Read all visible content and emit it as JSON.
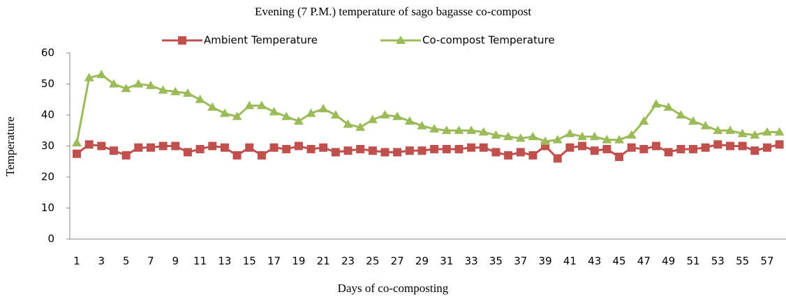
{
  "chart_data": {
    "type": "line",
    "title": "Evening (7 P.M.) temperature of sago bagasse co-compost",
    "x_label": "Days of co-composting",
    "y_label": "Temperature",
    "categories": [
      "1",
      null,
      "3",
      null,
      "5",
      null,
      "7",
      null,
      "9",
      null,
      "11",
      null,
      "13",
      null,
      "15",
      null,
      "17",
      null,
      "19",
      null,
      "21",
      null,
      "23",
      null,
      "25",
      null,
      "27",
      null,
      "29",
      null,
      "31",
      null,
      "33",
      null,
      "35",
      null,
      "37",
      null,
      "39",
      null,
      "41",
      null,
      "43",
      null,
      "45",
      null,
      "47",
      null,
      "49",
      null,
      "51",
      null,
      "53",
      null,
      "55",
      null,
      "57",
      null
    ],
    "series": [
      {
        "name": "Ambient Temperature",
        "color": "#c0504d",
        "marker": "square",
        "values": [
          27.5,
          30.5,
          30,
          28.5,
          27,
          29.5,
          29.5,
          30,
          30,
          28,
          29,
          30,
          29.5,
          27,
          29.5,
          27,
          29.5,
          29,
          30,
          29,
          29.5,
          28,
          28.5,
          29,
          28.5,
          28,
          28,
          28.5,
          28.5,
          29,
          29,
          29,
          29.5,
          29.5,
          28,
          27,
          28,
          27,
          30,
          26,
          29.5,
          30,
          28.5,
          29,
          26.5,
          29.5,
          29,
          30,
          28,
          29,
          29,
          29.5,
          30.5,
          30,
          30,
          28.5,
          29.5,
          30.5
        ]
      },
      {
        "name": "Co-compost Temperature",
        "color": "#9bbb59",
        "marker": "triangle",
        "values": [
          31,
          52,
          53,
          50,
          48.5,
          50,
          49.5,
          48,
          47.5,
          47,
          45,
          42.5,
          40.5,
          39.5,
          43,
          43,
          41,
          39.5,
          38,
          40.5,
          42,
          40,
          37,
          36,
          38.5,
          40,
          39.5,
          38,
          36.5,
          35.5,
          35,
          35,
          35,
          34.5,
          33.5,
          33,
          32.5,
          33,
          31.5,
          32,
          34,
          33,
          33,
          32,
          32,
          33.5,
          38,
          43.5,
          42.5,
          40,
          38,
          36.5,
          35,
          35,
          34,
          33.5,
          34.5,
          34.5
        ]
      }
    ],
    "ylim": [
      0,
      60
    ],
    "yticks": [
      0,
      10,
      20,
      30,
      40,
      50,
      60
    ],
    "grid": false,
    "legend": "top"
  }
}
